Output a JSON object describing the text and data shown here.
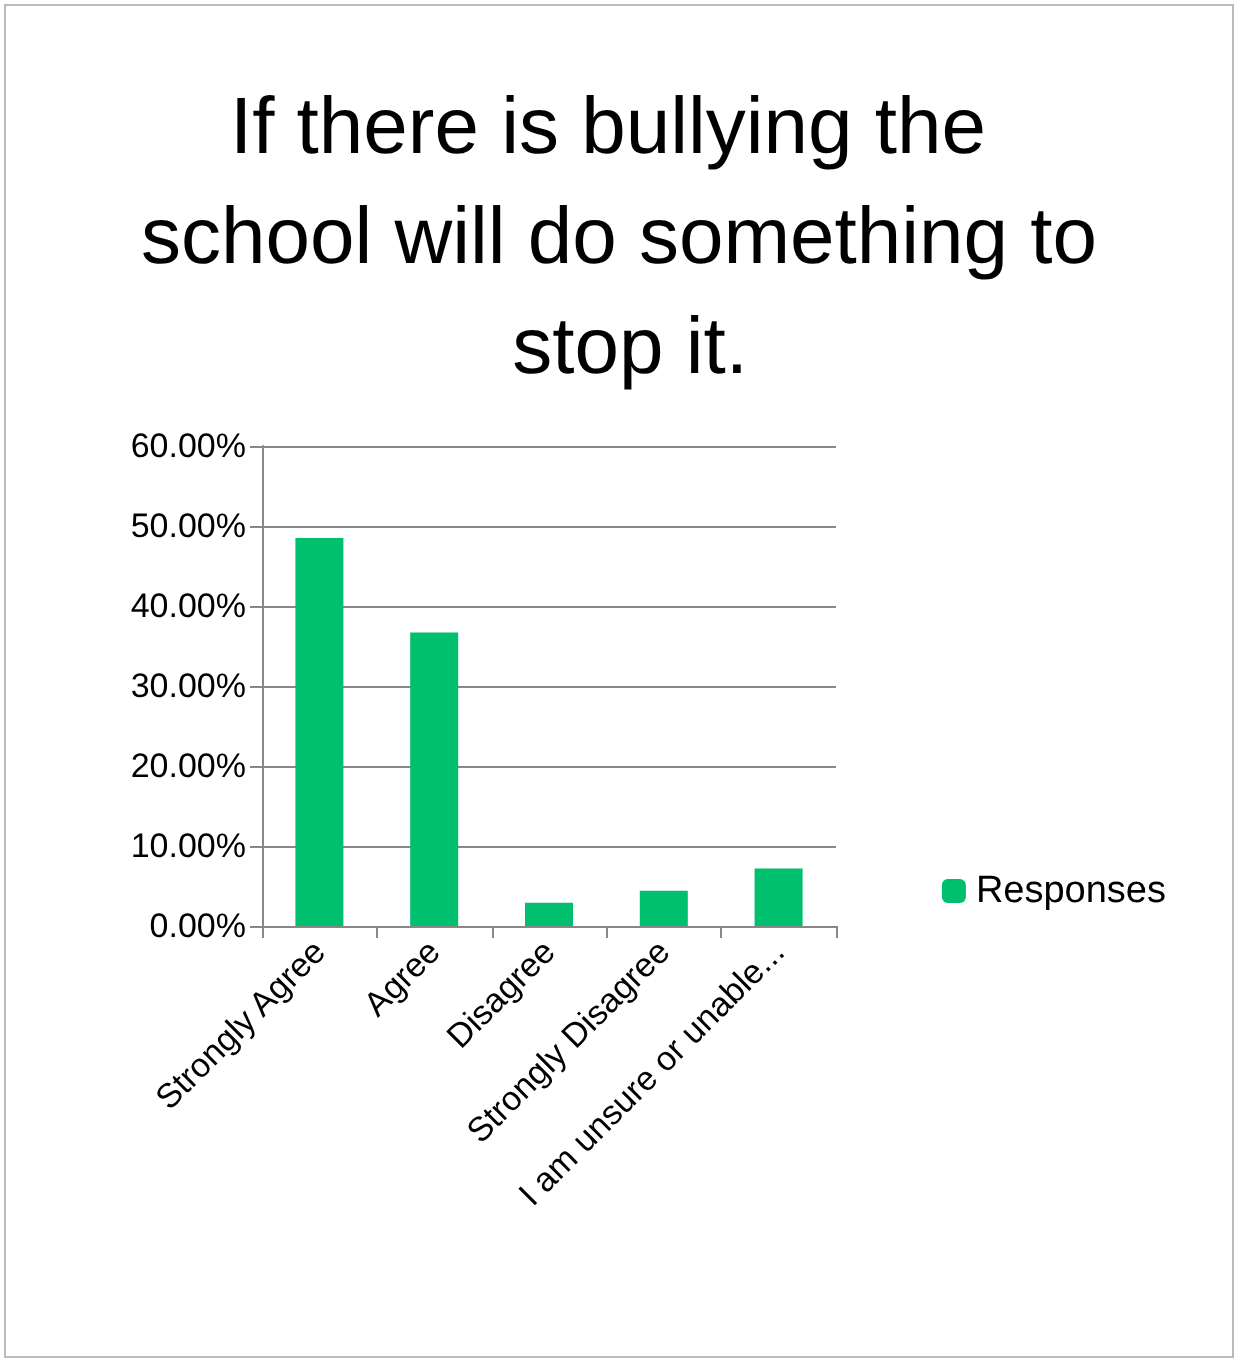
{
  "chart_data": {
    "type": "bar",
    "title": "If there is bullying the school will do something to stop it.",
    "categories": [
      "Strongly Agree",
      "Agree",
      "Disagree",
      "Strongly Disagree",
      "I am unsure or unable..."
    ],
    "series": [
      {
        "name": "Responses",
        "color": "#00bf6f",
        "values": [
          48.5,
          36.7,
          2.9,
          4.4,
          7.2
        ]
      }
    ],
    "ylim": [
      0,
      60
    ],
    "yticks": [
      {
        "value": 0,
        "label": "0.00%"
      },
      {
        "value": 10,
        "label": "10.00%"
      },
      {
        "value": 20,
        "label": "20.00%"
      },
      {
        "value": 30,
        "label": "30.00%"
      },
      {
        "value": 40,
        "label": "40.00%"
      },
      {
        "value": 50,
        "label": "50.00%"
      },
      {
        "value": 60,
        "label": "60.00%"
      }
    ],
    "grid": "y",
    "legend": "right"
  }
}
